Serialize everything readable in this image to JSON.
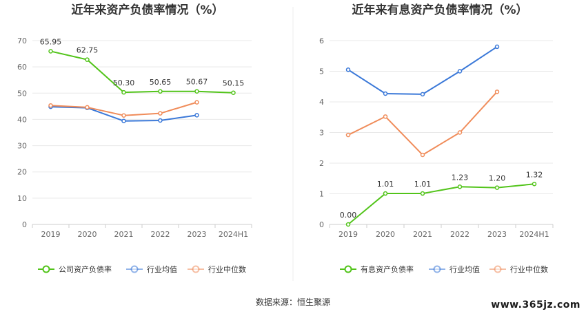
{
  "chart_data": [
    {
      "type": "line",
      "title": "近年来资产负债率情况（%）",
      "categories": [
        "2019",
        "2020",
        "2021",
        "2022",
        "2023",
        "2024H1"
      ],
      "ylim": [
        0,
        70
      ],
      "yticks": [
        "0",
        "10",
        "20",
        "30",
        "40",
        "50",
        "60",
        "70"
      ],
      "grid": true,
      "legend_position": "bottom",
      "series": [
        {
          "name": "公司资产负债率",
          "color": "#52c41a",
          "values": [
            65.95,
            62.75,
            50.3,
            50.65,
            50.67,
            50.15
          ],
          "labels": [
            "65.95",
            "62.75",
            "50.30",
            "50.65",
            "50.67",
            "50.15"
          ]
        },
        {
          "name": "行业均值",
          "color": "#3a78d8",
          "values": [
            44.8,
            44.4,
            39.4,
            39.6,
            41.6,
            null
          ]
        },
        {
          "name": "行业中位数",
          "color": "#f08c5a",
          "values": [
            45.3,
            44.6,
            41.5,
            42.3,
            46.5,
            null
          ]
        }
      ]
    },
    {
      "type": "line",
      "title": "近年来有息资产负债率情况（%）",
      "categories": [
        "2019",
        "2020",
        "2021",
        "2022",
        "2023",
        "2024H1"
      ],
      "ylim": [
        0,
        6
      ],
      "yticks": [
        "0",
        "1",
        "2",
        "3",
        "4",
        "5",
        "6"
      ],
      "grid": true,
      "legend_position": "bottom",
      "series": [
        {
          "name": "有息资产负债率",
          "color": "#52c41a",
          "values": [
            0.0,
            1.01,
            1.01,
            1.23,
            1.2,
            1.32
          ],
          "labels": [
            "0.00",
            "1.01",
            "1.01",
            "1.23",
            "1.20",
            "1.32"
          ]
        },
        {
          "name": "行业均值",
          "color": "#3a78d8",
          "values": [
            5.05,
            4.27,
            4.25,
            5.0,
            5.8,
            null
          ]
        },
        {
          "name": "行业中位数",
          "color": "#f08c5a",
          "values": [
            2.92,
            3.52,
            2.27,
            3.0,
            4.33,
            null
          ]
        }
      ]
    }
  ],
  "footer": {
    "source": "数据来源：恒生聚源",
    "watermark": "www.365jz.com"
  }
}
